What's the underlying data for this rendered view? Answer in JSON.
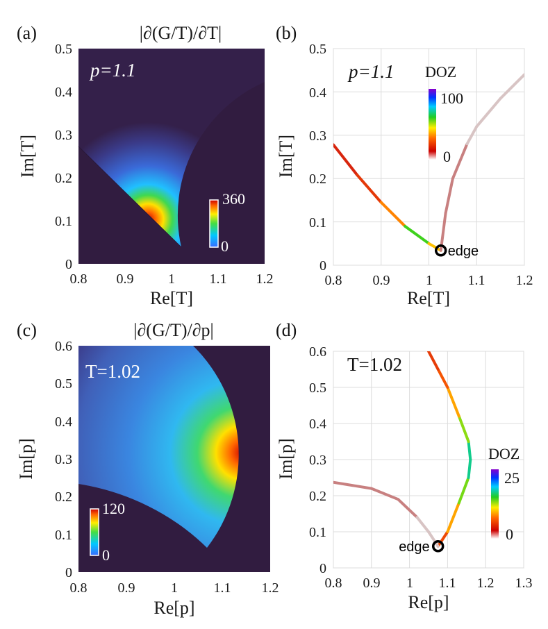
{
  "chart_data": [
    {
      "panel": "(a)",
      "type": "heatmap",
      "title": "|∂(G/T)/∂T|",
      "xlabel": "Re[T]",
      "ylabel": "Im[T]",
      "xlim": [
        0.8,
        1.2
      ],
      "ylim": [
        0,
        0.5
      ],
      "xticks": [
        "0.8",
        "0.9",
        "1",
        "1.1",
        "1.2"
      ],
      "yticks": [
        "0",
        "0.1",
        "0.2",
        "0.3",
        "0.4",
        "0.5"
      ],
      "annotation": "p=1.1",
      "colorbar": {
        "min": 0,
        "max": 360,
        "labels": [
          "360",
          "0"
        ]
      },
      "peak": {
        "x": 0.95,
        "y": 0.1
      },
      "wedge_vertex": {
        "x": 1.02,
        "y": 0.033
      }
    },
    {
      "panel": "(b)",
      "type": "line",
      "xlabel": "Re[T]",
      "ylabel": "Im[T]",
      "xlim": [
        0.8,
        1.2
      ],
      "ylim": [
        0,
        0.5
      ],
      "xticks": [
        "0.8",
        "0.9",
        "1",
        "1.1",
        "1.2"
      ],
      "yticks": [
        "0",
        "0.1",
        "0.2",
        "0.3",
        "0.4",
        "0.5"
      ],
      "grid": true,
      "annotation": "p=1.1",
      "colorbar": {
        "title": "DOZ",
        "min": 0,
        "max": 100,
        "labels": [
          "100",
          "0"
        ]
      },
      "edge": {
        "label": "edge",
        "x": 1.025,
        "y": 0.034
      },
      "series": [
        {
          "x": [
            0.8,
            0.85,
            0.9,
            0.95,
            1.0,
            1.025
          ],
          "y": [
            0.278,
            0.208,
            0.145,
            0.09,
            0.05,
            0.034
          ],
          "doz": [
            5,
            8,
            18,
            45,
            80,
            0
          ]
        },
        {
          "x": [
            1.025,
            1.035,
            1.05,
            1.08,
            1.1,
            1.15,
            1.2
          ],
          "y": [
            0.034,
            0.12,
            0.2,
            0.28,
            0.32,
            0.385,
            0.44
          ],
          "doz": [
            0,
            0,
            0,
            0,
            0,
            0,
            0
          ]
        }
      ]
    },
    {
      "panel": "(c)",
      "type": "heatmap",
      "title": "|∂(G/T)/∂p|",
      "xlabel": "Re[p]",
      "ylabel": "Im[p]",
      "xlim": [
        0.8,
        1.2
      ],
      "ylim": [
        0,
        0.6
      ],
      "xticks": [
        "0.8",
        "0.9",
        "1",
        "1.1",
        "1.2"
      ],
      "yticks": [
        "0",
        "0.1",
        "0.2",
        "0.3",
        "0.4",
        "0.5",
        "0.6"
      ],
      "annotation": "T=1.02",
      "colorbar": {
        "min": 0,
        "max": 120,
        "labels": [
          "120",
          "0"
        ]
      },
      "peak": {
        "x": 1.15,
        "y": 0.31
      },
      "wedge_vertex": {
        "x": 1.07,
        "y": 0.06
      }
    },
    {
      "panel": "(d)",
      "type": "line",
      "xlabel": "Re[p]",
      "ylabel": "Im[p]",
      "xlim": [
        0.8,
        1.3
      ],
      "ylim": [
        0,
        0.6
      ],
      "xticks": [
        "0.8",
        "0.9",
        "1",
        "1.1",
        "1.2",
        "1.3"
      ],
      "yticks": [
        "0",
        "0.1",
        "0.2",
        "0.3",
        "0.4",
        "0.5",
        "0.6"
      ],
      "grid": true,
      "annotation": "T=1.02",
      "colorbar": {
        "title": "DOZ",
        "min": 0,
        "max": 25,
        "labels": [
          "25",
          "0"
        ]
      },
      "edge": {
        "label": "edge",
        "x": 1.075,
        "y": 0.06
      },
      "series": [
        {
          "x": [
            1.075,
            1.1,
            1.13,
            1.155,
            1.16,
            1.155,
            1.13,
            1.1,
            1.075,
            1.05
          ],
          "y": [
            0.06,
            0.1,
            0.18,
            0.25,
            0.3,
            0.35,
            0.42,
            0.5,
            0.55,
            0.6
          ],
          "doz": [
            3,
            6,
            12,
            17,
            20,
            17,
            11,
            7,
            4,
            3
          ]
        },
        {
          "x": [
            0.8,
            0.9,
            0.97,
            1.02,
            1.05,
            1.075
          ],
          "y": [
            0.237,
            0.22,
            0.19,
            0.14,
            0.1,
            0.06
          ],
          "doz": [
            0,
            0,
            0,
            0,
            0,
            0
          ]
        }
      ]
    }
  ]
}
